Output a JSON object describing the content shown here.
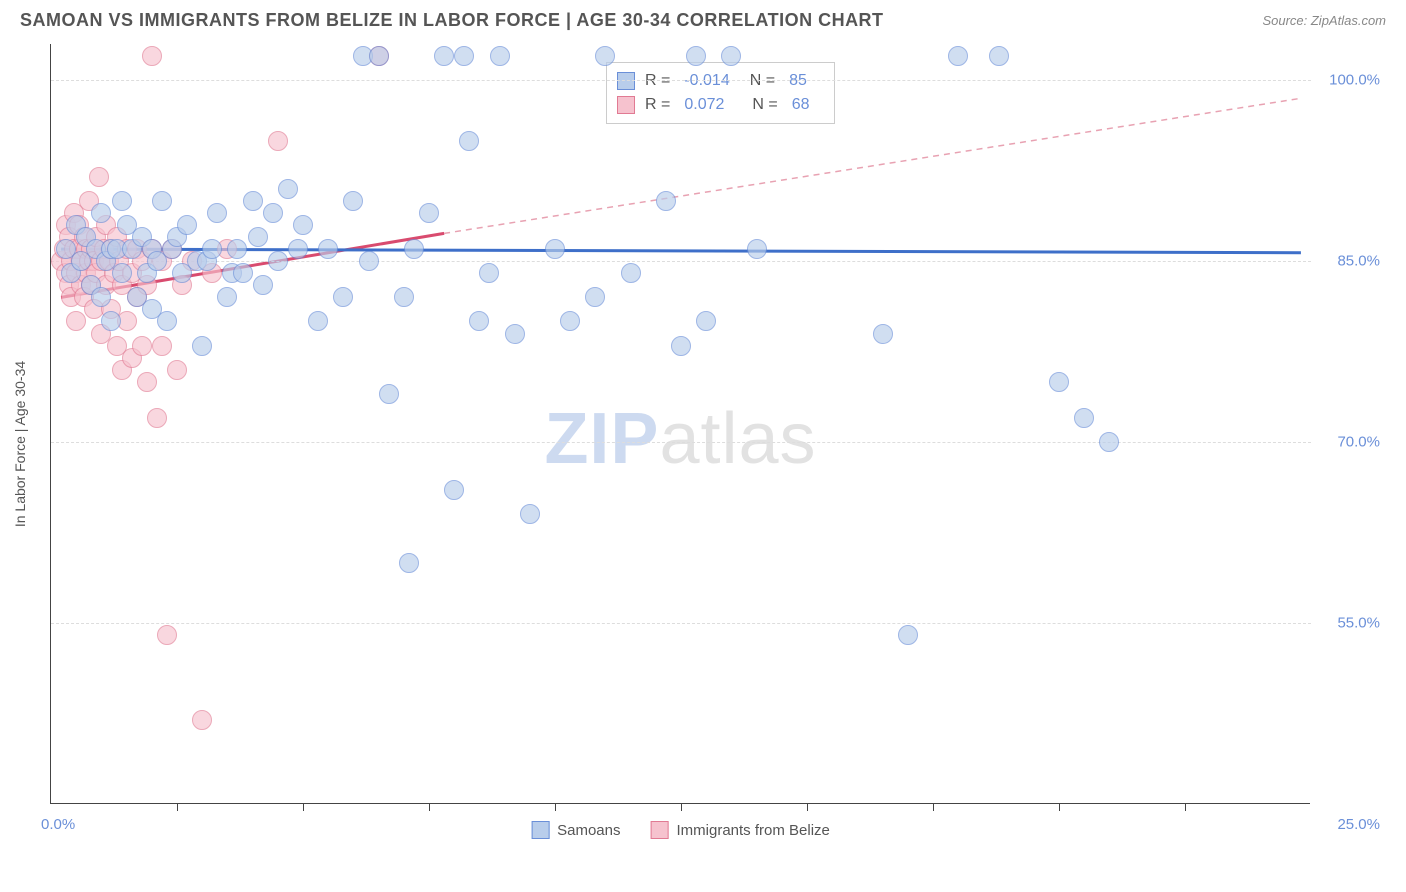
{
  "header": {
    "title": "SAMOAN VS IMMIGRANTS FROM BELIZE IN LABOR FORCE | AGE 30-34 CORRELATION CHART",
    "source": "Source: ZipAtlas.com"
  },
  "chart": {
    "type": "scatter",
    "y_axis_label": "In Labor Force | Age 30-34",
    "xlim": [
      0,
      25
    ],
    "ylim": [
      40,
      103
    ],
    "x_left_label": "0.0%",
    "x_right_label": "25.0%",
    "x_tick_positions": [
      2.5,
      5.0,
      7.5,
      10.0,
      12.5,
      15.0,
      17.5,
      20.0,
      22.5
    ],
    "y_ticks": [
      {
        "value": 55.0,
        "label": "55.0%"
      },
      {
        "value": 70.0,
        "label": "70.0%"
      },
      {
        "value": 85.0,
        "label": "85.0%"
      },
      {
        "value": 100.0,
        "label": "100.0%"
      }
    ],
    "grid_color": "#dddddd",
    "axis_color": "#444444",
    "background_color": "#ffffff",
    "tick_label_color": "#6a8fd8",
    "marker_radius": 10,
    "watermark": {
      "part1": "ZIP",
      "part2": "atlas"
    },
    "series": [
      {
        "key": "samoans",
        "name": "Samoans",
        "fill_color": "#b8cdeb",
        "stroke_color": "#6a8fd8",
        "fill_opacity": 0.65,
        "R": "-0.014",
        "N": "85",
        "trend": {
          "x1": 0.2,
          "y1": 86.0,
          "x2": 24.8,
          "y2": 85.7,
          "color": "#3e6fc9",
          "width": 3,
          "dash": "none"
        },
        "points": [
          [
            0.3,
            86
          ],
          [
            0.4,
            84
          ],
          [
            0.5,
            88
          ],
          [
            0.6,
            85
          ],
          [
            0.7,
            87
          ],
          [
            0.8,
            83
          ],
          [
            0.9,
            86
          ],
          [
            1.0,
            82
          ],
          [
            1.0,
            89
          ],
          [
            1.1,
            85
          ],
          [
            1.2,
            86
          ],
          [
            1.2,
            80
          ],
          [
            1.3,
            86
          ],
          [
            1.4,
            90
          ],
          [
            1.4,
            84
          ],
          [
            1.5,
            88
          ],
          [
            1.6,
            86
          ],
          [
            1.7,
            82
          ],
          [
            1.8,
            87
          ],
          [
            1.9,
            84
          ],
          [
            2.0,
            86
          ],
          [
            2.0,
            81
          ],
          [
            2.1,
            85
          ],
          [
            2.2,
            90
          ],
          [
            2.3,
            80
          ],
          [
            2.4,
            86
          ],
          [
            2.5,
            87
          ],
          [
            2.6,
            84
          ],
          [
            2.7,
            88
          ],
          [
            2.9,
            85
          ],
          [
            3.0,
            78
          ],
          [
            3.1,
            85
          ],
          [
            3.2,
            86
          ],
          [
            3.3,
            89
          ],
          [
            3.5,
            82
          ],
          [
            3.6,
            84
          ],
          [
            3.7,
            86
          ],
          [
            3.8,
            84
          ],
          [
            4.0,
            90
          ],
          [
            4.1,
            87
          ],
          [
            4.2,
            83
          ],
          [
            4.4,
            89
          ],
          [
            4.5,
            85
          ],
          [
            4.7,
            91
          ],
          [
            4.9,
            86
          ],
          [
            5.0,
            88
          ],
          [
            5.3,
            80
          ],
          [
            5.5,
            86
          ],
          [
            5.8,
            82
          ],
          [
            6.0,
            90
          ],
          [
            6.2,
            102
          ],
          [
            6.3,
            85
          ],
          [
            6.5,
            102
          ],
          [
            6.7,
            74
          ],
          [
            7.0,
            82
          ],
          [
            7.1,
            60
          ],
          [
            7.2,
            86
          ],
          [
            7.5,
            89
          ],
          [
            7.8,
            102
          ],
          [
            8.0,
            66
          ],
          [
            8.2,
            102
          ],
          [
            8.3,
            95
          ],
          [
            8.5,
            80
          ],
          [
            8.7,
            84
          ],
          [
            8.9,
            102
          ],
          [
            9.2,
            79
          ],
          [
            9.5,
            64
          ],
          [
            10.0,
            86
          ],
          [
            10.3,
            80
          ],
          [
            10.8,
            82
          ],
          [
            11.0,
            102
          ],
          [
            11.5,
            84
          ],
          [
            12.2,
            90
          ],
          [
            12.5,
            78
          ],
          [
            12.8,
            102
          ],
          [
            13.0,
            80
          ],
          [
            13.5,
            102
          ],
          [
            14.0,
            86
          ],
          [
            16.5,
            79
          ],
          [
            17.0,
            54
          ],
          [
            18.0,
            102
          ],
          [
            18.8,
            102
          ],
          [
            20.0,
            75
          ],
          [
            20.5,
            72
          ],
          [
            21.0,
            70
          ]
        ]
      },
      {
        "key": "belize",
        "name": "Immigrants from Belize",
        "fill_color": "#f6c2ce",
        "stroke_color": "#e17a93",
        "fill_opacity": 0.65,
        "R": "0.072",
        "N": "68",
        "trend_solid": {
          "x1": 0.2,
          "y1": 82.0,
          "x2": 7.8,
          "y2": 87.3,
          "color": "#d94b6f",
          "width": 3
        },
        "trend_dashed": {
          "x1": 7.8,
          "y1": 87.3,
          "x2": 24.8,
          "y2": 98.5,
          "color": "#e8a2b2",
          "width": 1.5,
          "dash": "6,5"
        },
        "points": [
          [
            0.2,
            85
          ],
          [
            0.25,
            86
          ],
          [
            0.3,
            84
          ],
          [
            0.3,
            88
          ],
          [
            0.35,
            83
          ],
          [
            0.35,
            87
          ],
          [
            0.4,
            85
          ],
          [
            0.4,
            82
          ],
          [
            0.45,
            86
          ],
          [
            0.45,
            89
          ],
          [
            0.5,
            84
          ],
          [
            0.5,
            80
          ],
          [
            0.55,
            86
          ],
          [
            0.55,
            88
          ],
          [
            0.6,
            83
          ],
          [
            0.6,
            85
          ],
          [
            0.65,
            87
          ],
          [
            0.65,
            82
          ],
          [
            0.7,
            86
          ],
          [
            0.7,
            84
          ],
          [
            0.75,
            85
          ],
          [
            0.75,
            90
          ],
          [
            0.8,
            83
          ],
          [
            0.8,
            86
          ],
          [
            0.85,
            85
          ],
          [
            0.85,
            81
          ],
          [
            0.9,
            87
          ],
          [
            0.9,
            84
          ],
          [
            0.95,
            92
          ],
          [
            1.0,
            85
          ],
          [
            1.0,
            79
          ],
          [
            1.05,
            86
          ],
          [
            1.1,
            83
          ],
          [
            1.1,
            88
          ],
          [
            1.15,
            85
          ],
          [
            1.2,
            81
          ],
          [
            1.2,
            86
          ],
          [
            1.25,
            84
          ],
          [
            1.3,
            87
          ],
          [
            1.3,
            78
          ],
          [
            1.35,
            85
          ],
          [
            1.4,
            83
          ],
          [
            1.4,
            76
          ],
          [
            1.5,
            86
          ],
          [
            1.5,
            80
          ],
          [
            1.6,
            84
          ],
          [
            1.6,
            77
          ],
          [
            1.7,
            86
          ],
          [
            1.7,
            82
          ],
          [
            1.8,
            85
          ],
          [
            1.8,
            78
          ],
          [
            1.9,
            83
          ],
          [
            1.9,
            75
          ],
          [
            2.0,
            86
          ],
          [
            2.0,
            102
          ],
          [
            2.1,
            72
          ],
          [
            2.2,
            85
          ],
          [
            2.2,
            78
          ],
          [
            2.3,
            54
          ],
          [
            2.4,
            86
          ],
          [
            2.5,
            76
          ],
          [
            2.6,
            83
          ],
          [
            2.8,
            85
          ],
          [
            3.0,
            47
          ],
          [
            3.2,
            84
          ],
          [
            3.5,
            86
          ],
          [
            4.5,
            95
          ],
          [
            6.5,
            102
          ]
        ]
      }
    ],
    "legend": {
      "samoans_label": "Samoans",
      "belize_label": "Immigrants from Belize"
    }
  }
}
